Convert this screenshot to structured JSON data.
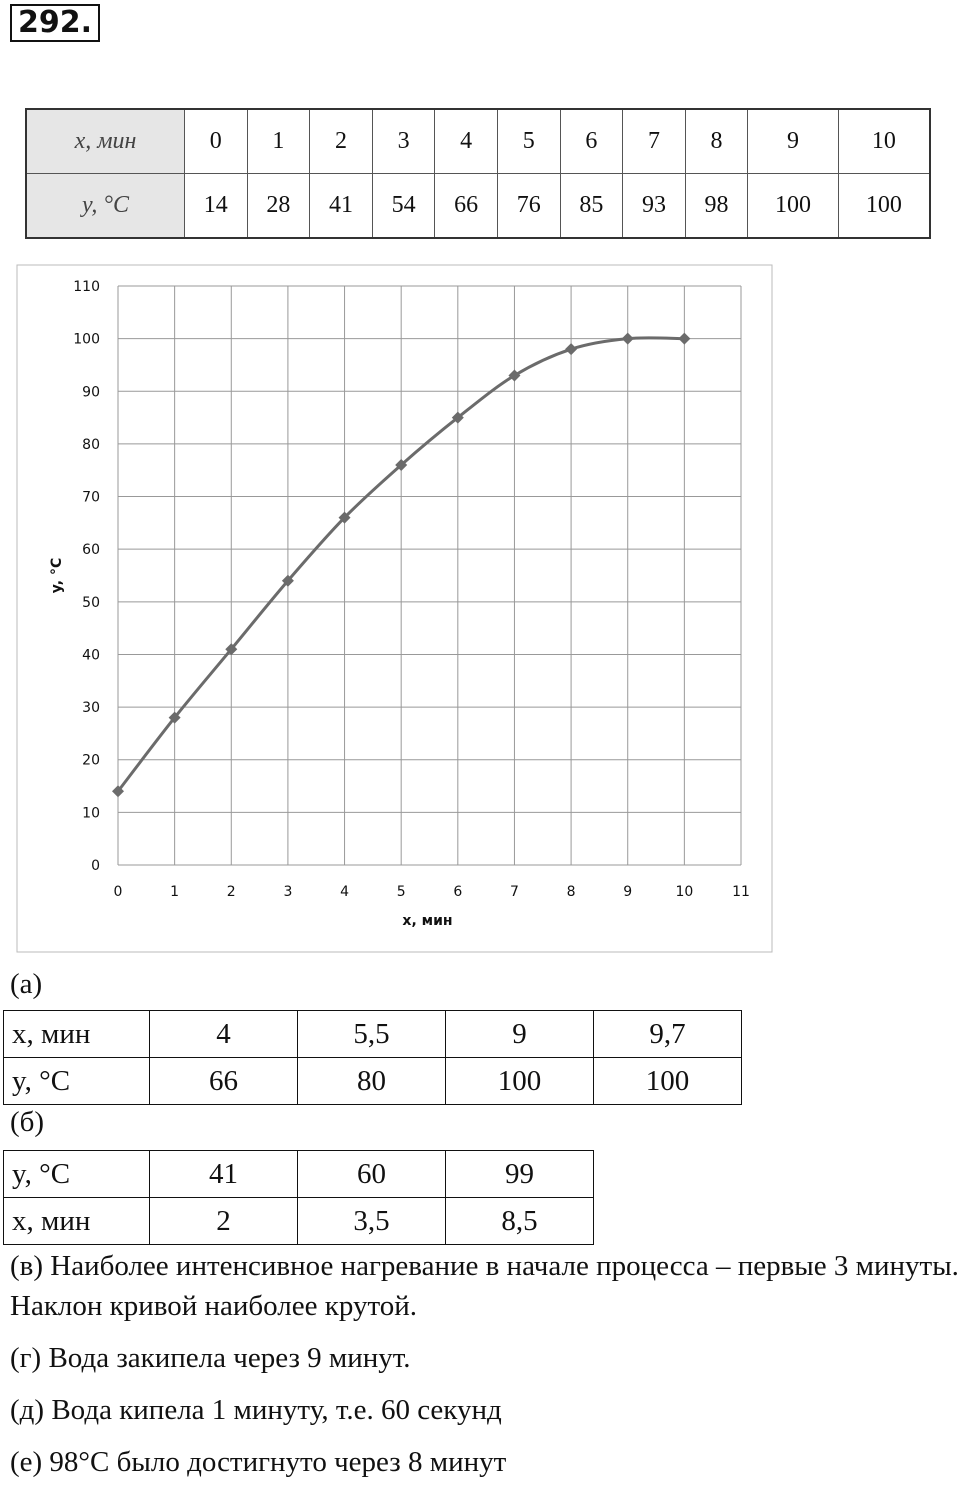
{
  "problem_number": "292.",
  "data_table": {
    "rows": [
      [
        "x, мин",
        "0",
        "1",
        "2",
        "3",
        "4",
        "5",
        "6",
        "7",
        "8",
        "9",
        "10"
      ],
      [
        "y, °C",
        "14",
        "28",
        "41",
        "54",
        "66",
        "76",
        "85",
        "93",
        "98",
        "100",
        "100"
      ]
    ]
  },
  "chart_data": {
    "type": "line",
    "x": [
      0,
      1,
      2,
      3,
      4,
      5,
      6,
      7,
      8,
      9,
      10
    ],
    "values": [
      14,
      28,
      41,
      54,
      66,
      76,
      85,
      93,
      98,
      100,
      100
    ],
    "color": "#6b6b6b",
    "xlim": [
      0,
      11
    ],
    "ylim": [
      0,
      110
    ],
    "xticks": [
      0,
      1,
      2,
      3,
      4,
      5,
      6,
      7,
      8,
      9,
      10,
      11
    ],
    "yticks": [
      0,
      10,
      20,
      30,
      40,
      50,
      60,
      70,
      80,
      90,
      100,
      110
    ],
    "xlabel": "x, мин",
    "ylabel": "y, °C",
    "grid": true
  },
  "part_a": {
    "label": "(а)",
    "rows": [
      [
        "x, мин",
        "4",
        "5,5",
        "9",
        "9,7"
      ],
      [
        "y, °C",
        "66",
        "80",
        "100",
        "100"
      ]
    ]
  },
  "part_b": {
    "label": "(б)",
    "rows": [
      [
        "y, °C",
        "41",
        "60",
        "99"
      ],
      [
        "x, мин",
        "2",
        "3,5",
        "8,5"
      ]
    ]
  },
  "answers": [
    "(в) Наиболее интенсивное нагревание в начале процесса – первые 3 минуты. Наклон кривой наиболее крутой.",
    "(г) Вода закипела через 9 минут.",
    "(д) Вода кипела 1 минуту, т.е. 60 секунд",
    "(е) 98°C было достигнуто через 8 минут"
  ]
}
